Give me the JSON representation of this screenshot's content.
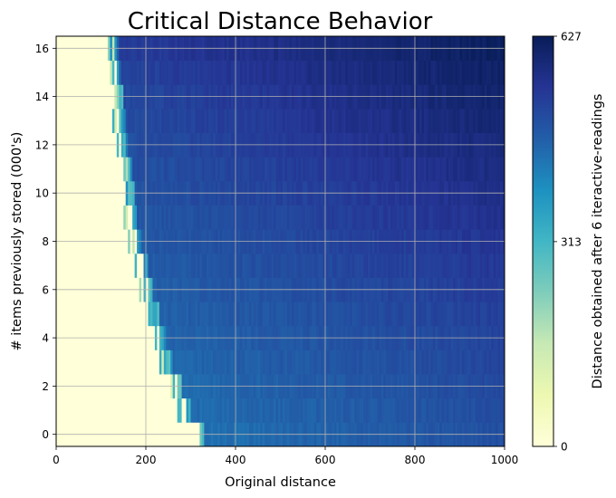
{
  "chart_data": {
    "type": "heatmap",
    "title": "Critical Distance Behavior",
    "xlabel": "Original distance",
    "ylabel": "# items previously stored (000's)",
    "colorbar_label": "Distance obtained after 6 iteractive-readings",
    "xlim": [
      0,
      1000
    ],
    "ylim": [
      -0.5,
      16.5
    ],
    "x_ticks": [
      0,
      200,
      400,
      600,
      800,
      1000
    ],
    "y_ticks": [
      0,
      2,
      4,
      6,
      8,
      10,
      12,
      14,
      16
    ],
    "colorbar_ticks": [
      0,
      313,
      627
    ],
    "value_range": [
      0,
      627
    ],
    "grid": true,
    "colormap": "YlGnBu",
    "rows": [
      0,
      1,
      2,
      3,
      4,
      5,
      6,
      7,
      8,
      9,
      10,
      11,
      12,
      13,
      14,
      15,
      16
    ],
    "critical_distance": [
      320,
      290,
      270,
      250,
      235,
      220,
      205,
      195,
      180,
      170,
      165,
      160,
      150,
      145,
      140,
      135,
      130
    ],
    "plateau_value_at_critical": [
      440,
      445,
      450,
      455,
      460,
      465,
      470,
      475,
      480,
      485,
      490,
      495,
      500,
      505,
      510,
      520,
      530
    ],
    "value_at_max_distance": [
      500,
      505,
      510,
      515,
      520,
      528,
      536,
      544,
      552,
      560,
      568,
      576,
      585,
      594,
      603,
      612,
      620
    ]
  }
}
